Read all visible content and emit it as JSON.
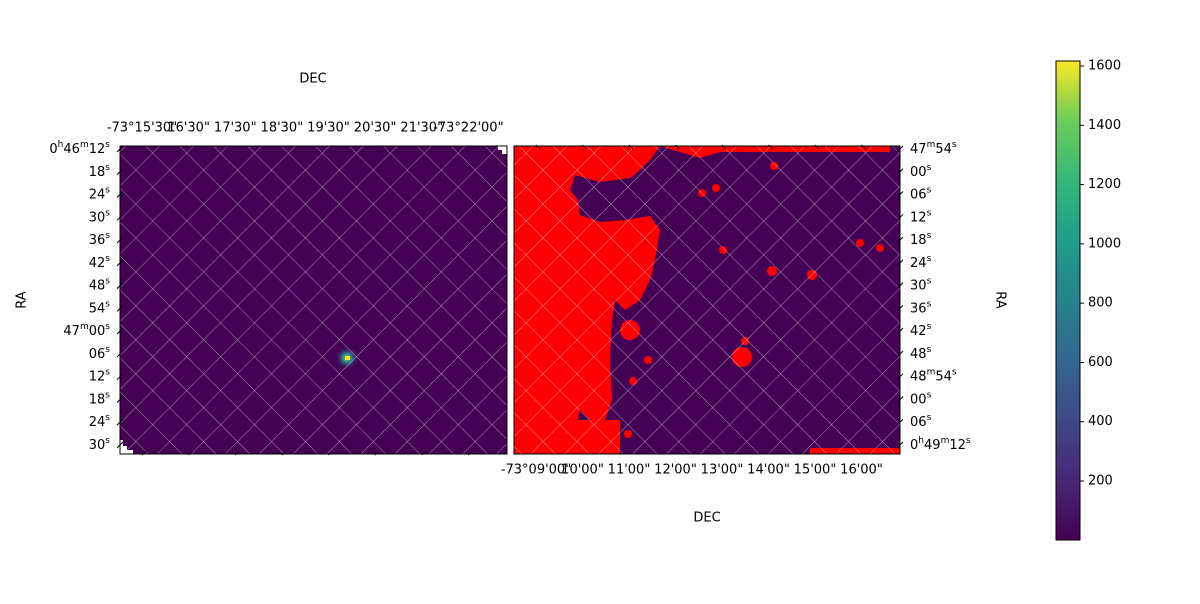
{
  "chart_data": {
    "type": "image",
    "panels": [
      {
        "xlabel": "DEC",
        "ylabel": "RA",
        "xticks": [
          "-73°15'30\"",
          "16'30\"",
          "17'30\"",
          "18'30\"",
          "19'30\"",
          "20'30\"",
          "21'30\"",
          "-73°22'00\""
        ],
        "yticks": [
          "0h46m12s",
          "18s",
          "24s",
          "30s",
          "36s",
          "42s",
          "48s",
          "54s",
          "47m00s",
          "06s",
          "12s",
          "18s",
          "24s",
          "30s"
        ]
      },
      {
        "xlabel": "DEC",
        "ylabel": "RA",
        "xticks": [
          "-73°09'00\"",
          "10'00\"",
          "11'00\"",
          "12'00\"",
          "13'00\"",
          "14'00\"",
          "15'00\"",
          "16'00\""
        ],
        "yticks": [
          "47m54s",
          "00s",
          "06s",
          "12s",
          "18s",
          "24s",
          "30s",
          "36s",
          "42s",
          "48s",
          "48m54s",
          "00s",
          "06s",
          "0h49m12s"
        ]
      }
    ],
    "colorbar": {
      "lim": [
        1,
        1617
      ],
      "ticks": [
        200,
        400,
        600,
        800,
        1000,
        1200,
        1400,
        1600
      ]
    }
  }
}
